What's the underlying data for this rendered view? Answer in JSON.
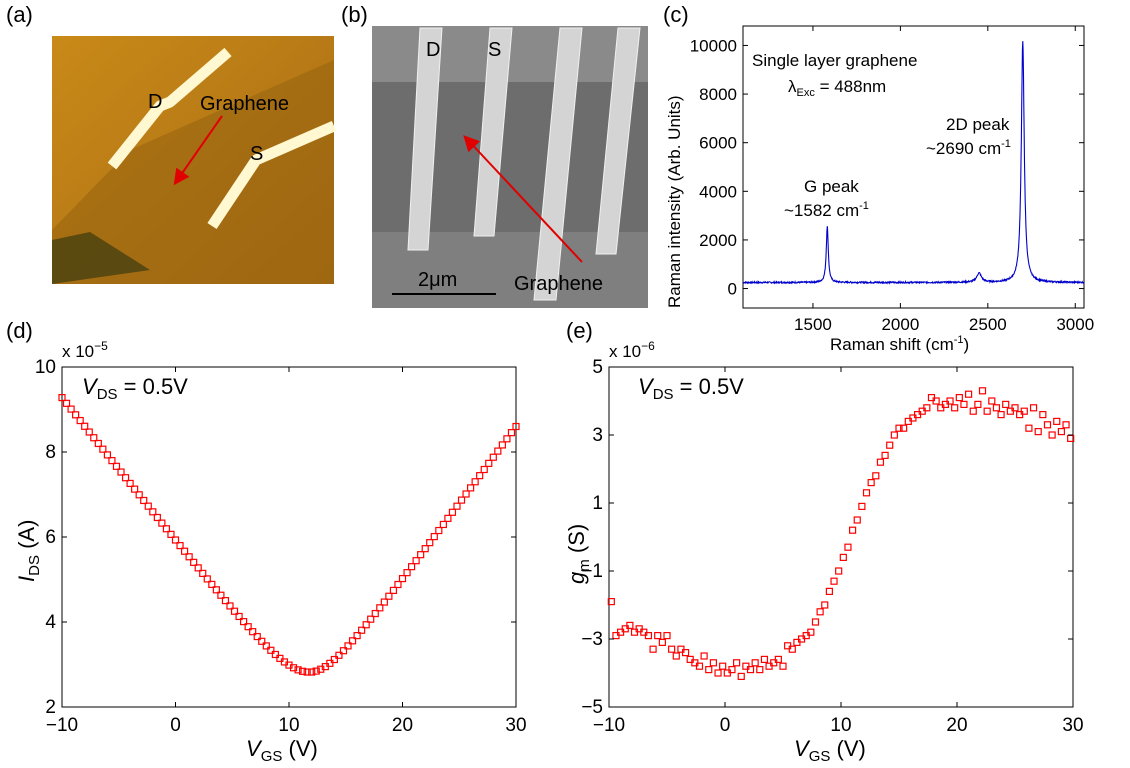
{
  "panels": {
    "a": {
      "label": "(a)",
      "D": "D",
      "S": "S",
      "graphene": "Graphene"
    },
    "b": {
      "label": "(b)",
      "D": "D",
      "S": "S",
      "graphene": "Graphene",
      "scalebar": "2μm"
    },
    "c": {
      "label": "(c)"
    },
    "d": {
      "label": "(d)"
    },
    "e": {
      "label": "(e)"
    }
  },
  "chart_data": [
    {
      "id": "c",
      "type": "line",
      "xlabel": "Raman shift (cm-1)",
      "ylabel": "Raman intensity (Arb. Units)",
      "xlim": [
        1100,
        3050
      ],
      "ylim": [
        -800,
        10800
      ],
      "xticks": [
        1500,
        2000,
        2500,
        3000
      ],
      "yticks": [
        0,
        2000,
        4000,
        6000,
        8000,
        10000
      ],
      "annotations": [
        "Single layer graphene",
        "λExc = 488nm",
        "G peak",
        "~1582 cm-1",
        "2D peak",
        "~2690 cm-1"
      ],
      "annotation_parts": {
        "title1": "Single layer graphene",
        "lambda": "λ",
        "exc": "Exc",
        "lambda_val": " = 488nm",
        "g_peak": "G peak",
        "g_pos": "~1582 cm",
        "twod_peak": "2D peak",
        "twod_pos": "~2690 cm",
        "inv": "-1",
        "xlabel_main": "Raman shift (cm",
        "xlabel_end": ")"
      },
      "color": "#0000cc",
      "baseline": 250,
      "peaks": [
        {
          "x": 1582,
          "height": 2300,
          "width": 7
        },
        {
          "x": 2450,
          "height": 380,
          "width": 16
        },
        {
          "x": 2700,
          "height": 9900,
          "width": 10
        }
      ]
    },
    {
      "id": "d",
      "type": "scatter",
      "xlabel": "VGS (V)",
      "ylabel": "IDS (A)",
      "axis_label_parts": {
        "x_var": "V",
        "x_sub": "GS",
        "x_unit": " (V)",
        "y_var": "I",
        "y_sub": "DS",
        "y_unit": " (A)"
      },
      "annotation_parts": {
        "var": "V",
        "sub": "DS",
        "val": " = 0.5V"
      },
      "multiplier": "x 10",
      "multiplier_exp": "−5",
      "xlim": [
        -10,
        30
      ],
      "ylim": [
        2,
        10
      ],
      "xticks": [
        -10,
        0,
        10,
        20,
        30
      ],
      "xticklabels": [
        "−10",
        "0",
        "10",
        "20",
        "30"
      ],
      "yticks": [
        2,
        4,
        6,
        8,
        10
      ],
      "color": "#ff0000",
      "marker": "square",
      "curve": {
        "x_start": -10,
        "x_end": 30,
        "step": 0.4,
        "min_x": 11.8,
        "min_y": 2.82,
        "left_y": 9.28,
        "right_y": 8.6
      }
    },
    {
      "id": "e",
      "type": "scatter",
      "xlabel": "VGS (V)",
      "ylabel": "gm (S)",
      "axis_label_parts": {
        "x_var": "V",
        "x_sub": "GS",
        "x_unit": " (V)",
        "y_var": "g",
        "y_sub": "m",
        "y_unit": " (S)"
      },
      "annotation_parts": {
        "var": "V",
        "sub": "DS",
        "val": " = 0.5V"
      },
      "multiplier": "x 10",
      "multiplier_exp": "−6",
      "xlim": [
        -10,
        30
      ],
      "ylim": [
        -5,
        5
      ],
      "xticks": [
        -10,
        0,
        10,
        20,
        30
      ],
      "xticklabels": [
        "−10",
        "0",
        "10",
        "20",
        "30"
      ],
      "yticks": [
        -5,
        -3,
        -1,
        1,
        3,
        5
      ],
      "yticklabels": [
        "−5",
        "−3",
        "−1",
        "1",
        "3",
        "5"
      ],
      "color": "#ff0000",
      "marker": "square",
      "x": [
        -9.8,
        -9.4,
        -9,
        -8.6,
        -8.2,
        -7.8,
        -7.4,
        -7,
        -6.6,
        -6.2,
        -5.8,
        -5.4,
        -5,
        -4.6,
        -4.2,
        -3.8,
        -3.4,
        -3,
        -2.6,
        -2.2,
        -1.8,
        -1.4,
        -1,
        -0.6,
        -0.2,
        0.2,
        0.6,
        1,
        1.4,
        1.8,
        2.2,
        2.6,
        3,
        3.4,
        3.8,
        4.2,
        4.6,
        5,
        5.4,
        5.8,
        6.2,
        6.6,
        7,
        7.4,
        7.8,
        8.2,
        8.6,
        9,
        9.4,
        9.8,
        10.2,
        10.6,
        11,
        11.4,
        11.8,
        12.2,
        12.6,
        13,
        13.4,
        13.8,
        14.2,
        14.6,
        15,
        15.4,
        15.8,
        16.2,
        16.6,
        17,
        17.4,
        17.8,
        18.2,
        18.6,
        19,
        19.4,
        19.8,
        20.2,
        20.6,
        21,
        21.4,
        21.8,
        22.2,
        22.6,
        23,
        23.4,
        23.8,
        24.2,
        24.6,
        25,
        25.4,
        25.8,
        26.2,
        26.6,
        27,
        27.4,
        27.8,
        28.2,
        28.6,
        29,
        29.4,
        29.8
      ],
      "y": [
        -1.9,
        -2.9,
        -2.8,
        -2.7,
        -2.6,
        -2.8,
        -2.7,
        -2.8,
        -2.9,
        -3.3,
        -2.9,
        -3.1,
        -2.9,
        -3.3,
        -3.5,
        -3.3,
        -3.4,
        -3.6,
        -3.7,
        -3.8,
        -3.5,
        -3.9,
        -3.7,
        -4.0,
        -3.8,
        -4.0,
        -3.9,
        -3.7,
        -4.1,
        -3.8,
        -3.9,
        -3.7,
        -3.9,
        -3.6,
        -3.8,
        -3.7,
        -3.6,
        -3.8,
        -3.2,
        -3.3,
        -3.1,
        -3.0,
        -2.9,
        -2.8,
        -2.5,
        -2.2,
        -2.0,
        -1.6,
        -1.3,
        -1.0,
        -0.6,
        -0.3,
        0.2,
        0.5,
        0.9,
        1.3,
        1.6,
        1.8,
        2.2,
        2.4,
        2.7,
        3.0,
        3.2,
        3.2,
        3.4,
        3.5,
        3.6,
        3.7,
        3.8,
        4.1,
        4.0,
        3.8,
        3.9,
        4.0,
        3.8,
        4.1,
        3.9,
        4.2,
        3.7,
        3.9,
        4.3,
        3.7,
        4.0,
        3.8,
        3.6,
        3.9,
        3.7,
        3.8,
        3.6,
        3.7,
        3.2,
        3.8,
        3.1,
        3.6,
        3.3,
        3.0,
        3.4,
        3.1,
        3.3,
        2.9
      ]
    }
  ]
}
